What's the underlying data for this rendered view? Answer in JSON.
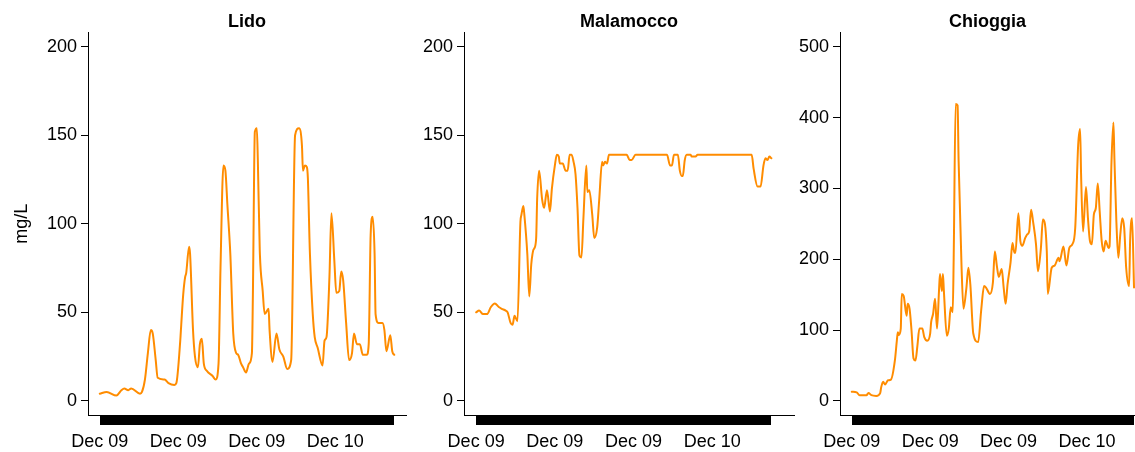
{
  "chart_data": [
    {
      "type": "line",
      "title": "Lido",
      "ylabel": "mg/L",
      "x": [
        "--12-09T00:00",
        "--12-09T00:42",
        "--12-09T01:42",
        "--12-09T02:12",
        "--12-09T02:30",
        "--12-09T02:54",
        "--12-09T03:12",
        "--12-09T04:06",
        "--12-09T04:18",
        "--12-09T04:36",
        "--12-09T04:54",
        "--12-09T05:12",
        "--12-09T05:24",
        "--12-09T05:42",
        "--12-09T05:54",
        "--12-09T06:36",
        "--12-09T07:00",
        "--12-09T07:36",
        "--12-09T07:48",
        "--12-09T08:12",
        "--12-09T08:18",
        "--12-09T08:30",
        "--12-09T08:42",
        "--12-09T08:48",
        "--12-09T09:06",
        "--12-09T09:12",
        "--12-09T09:30",
        "--12-09T09:42",
        "--12-09T10:00",
        "--12-09T10:12",
        "--12-09T10:24",
        "--12-09T10:36",
        "--12-09T10:54",
        "--12-09T11:30",
        "--12-09T11:48",
        "--12-09T12:06",
        "--12-09T12:18",
        "--12-09T12:36",
        "--12-09T12:48",
        "--12-09T13:00",
        "--12-09T13:18",
        "--12-09T13:36",
        "--12-09T13:54",
        "--12-09T14:06",
        "--12-09T14:24",
        "--12-09T14:36",
        "--12-09T14:54",
        "--12-09T15:12",
        "--12-09T15:30",
        "--12-09T15:36",
        "--12-09T15:48",
        "--12-09T16:00",
        "--12-09T16:06",
        "--12-09T16:18",
        "--12-09T16:36",
        "--12-09T16:48",
        "--12-09T17:12",
        "--12-09T17:18",
        "--12-09T17:36",
        "--12-09T18:00",
        "--12-09T18:18",
        "--12-09T18:42",
        "--12-09T19:06",
        "--12-09T19:30",
        "--12-09T19:54",
        "--12-09T20:18",
        "--12-09T20:36",
        "--12-09T20:42",
        "--12-09T20:54",
        "--12-09T21:06",
        "--12-09T21:12",
        "--12-09T21:24",
        "--12-09T21:42",
        "--12-09T21:54",
        "--12-09T22:12",
        "--12-09T22:42",
        "--12-09T22:54",
        "--12-09T23:06",
        "--12-09T23:24",
        "--12-09T23:36",
        "--12-09T23:54",
        "--12-10T00:06",
        "--12-10T00:24",
        "--12-10T00:36",
        "--12-10T00:48",
        "--12-10T01:06",
        "--12-10T01:24",
        "--12-10T01:42",
        "--12-10T01:54",
        "--12-10T02:12",
        "--12-10T02:30",
        "--12-10T02:48",
        "--12-10T03:12",
        "--12-10T03:24",
        "--12-10T03:36",
        "--12-10T03:48",
        "--12-10T04:00",
        "--12-10T04:06",
        "--12-10T04:24",
        "--12-10T04:48",
        "--12-10T05:00",
        "--12-10T05:12",
        "--12-10T05:36",
        "--12-10T05:48",
        "--12-10T06:00"
      ],
      "series": [
        {
          "color": "#ff8c00",
          "values": [
            4,
            5,
            3,
            6,
            7,
            6,
            7,
            4,
            5,
            12,
            27,
            40,
            38,
            23,
            13,
            12,
            10,
            9,
            10,
            34,
            43,
            60,
            70,
            72,
            87,
            83,
            40,
            25,
            19,
            32,
            35,
            21,
            17,
            14,
            12,
            21,
            75,
            133,
            130,
            111,
            83,
            38,
            27,
            26,
            21,
            19,
            16,
            21,
            27,
            60,
            152,
            154,
            137,
            85,
            62,
            49,
            52,
            40,
            22,
            38,
            29,
            25,
            18,
            23,
            150,
            154,
            144,
            130,
            133,
            132,
            126,
            85,
            49,
            36,
            30,
            20,
            34,
            36,
            70,
            106,
            79,
            61,
            62,
            73,
            68,
            44,
            23,
            27,
            38,
            32,
            32,
            26,
            26,
            32,
            94,
            104,
            83,
            49,
            44,
            44,
            40,
            28,
            37,
            28,
            26
          ]
        }
      ],
      "xlim": [
        "--12-08T22:48",
        "--12-10T07:12"
      ],
      "xticks": [
        {
          "value": "--12-09T00:00",
          "label": "Dec 09"
        },
        {
          "value": "--12-09T08:00",
          "label": "Dec 09"
        },
        {
          "value": "--12-09T16:00",
          "label": "Dec 09"
        },
        {
          "value": "--12-10T00:00",
          "label": "Dec 10"
        }
      ],
      "ylim": [
        -8,
        208
      ],
      "yticks": [
        0,
        50,
        100,
        150,
        200
      ]
    },
    {
      "type": "line",
      "title": "Malamocco",
      "x": [
        "--12-09T00:00",
        "--12-09T00:18",
        "--12-09T00:42",
        "--12-09T01:06",
        "--12-09T01:30",
        "--12-09T01:54",
        "--12-09T02:18",
        "--12-09T02:36",
        "--12-09T03:00",
        "--12-09T03:12",
        "--12-09T03:30",
        "--12-09T03:42",
        "--12-09T03:54",
        "--12-09T04:12",
        "--12-09T04:30",
        "--12-09T04:36",
        "--12-09T04:48",
        "--12-09T04:54",
        "--12-09T05:12",
        "--12-09T05:24",
        "--12-09T05:36",
        "--12-09T05:48",
        "--12-09T05:54",
        "--12-09T06:06",
        "--12-09T06:12",
        "--12-09T06:24",
        "--12-09T06:42",
        "--12-09T06:54",
        "--12-09T07:12",
        "--12-09T07:30",
        "--12-09T07:42",
        "--12-09T08:00",
        "--12-09T08:12",
        "--12-09T08:24",
        "--12-09T08:30",
        "--12-09T08:48",
        "--12-09T09:06",
        "--12-09T09:18",
        "--12-09T09:30",
        "--12-09T09:42",
        "--12-09T09:54",
        "--12-09T10:06",
        "--12-09T10:18",
        "--12-09T10:30",
        "--12-09T10:42",
        "--12-09T10:54",
        "--12-09T11:12",
        "--12-09T11:18",
        "--12-09T11:30",
        "--12-09T11:48",
        "--12-09T12:00",
        "--12-09T12:18",
        "--12-09T12:30",
        "--12-09T12:48",
        "--12-09T12:54",
        "--12-09T13:06",
        "--12-09T13:18",
        "--12-09T13:30",
        "--12-09T15:18",
        "--12-09T15:36",
        "--12-09T15:48",
        "--12-09T16:12",
        "--12-09T19:24",
        "--12-09T19:42",
        "--12-09T19:54",
        "--12-09T20:06",
        "--12-09T20:30",
        "--12-09T20:42",
        "--12-09T20:54",
        "--12-09T21:00",
        "--12-09T21:12",
        "--12-09T21:24",
        "--12-09T21:48",
        "--12-09T21:54",
        "--12-09T22:18",
        "--12-09T22:30",
        "--12-10T04:00",
        "--12-10T04:12",
        "--12-10T04:36",
        "--12-10T04:54",
        "--12-10T05:12",
        "--12-10T05:24",
        "--12-10T05:36",
        "--12-10T05:48",
        "--12-10T06:00"
      ],
      "series": [
        {
          "color": "#ff8c00",
          "values": [
            50,
            51,
            49,
            49,
            53,
            55,
            53,
            52,
            51,
            50,
            44,
            43,
            48,
            45,
            101,
            105,
            110,
            105,
            83,
            59,
            77,
            85,
            86,
            92,
            114,
            130,
            114,
            109,
            119,
            107,
            120,
            133,
            139,
            138,
            134,
            134,
            130,
            130,
            139,
            139,
            135,
            128,
            109,
            82,
            81,
            103,
            133,
            118,
            119,
            105,
            92,
            98,
            113,
            135,
            133,
            135,
            134,
            139,
            139,
            136,
            136,
            139,
            139,
            133,
            133,
            139,
            139,
            130,
            127,
            127,
            136,
            139,
            139,
            138,
            138,
            139,
            139,
            131,
            121,
            121,
            133,
            137,
            136,
            138,
            137
          ]
        }
      ],
      "xlim": [
        "--12-08T22:46",
        "--12-10T08:18"
      ],
      "xticks": [
        {
          "value": "--12-09T00:00",
          "label": "Dec 09"
        },
        {
          "value": "--12-09T08:00",
          "label": "Dec 09"
        },
        {
          "value": "--12-09T16:00",
          "label": "Dec 09"
        },
        {
          "value": "--12-10T00:00",
          "label": "Dec 10"
        }
      ],
      "ylim": [
        -8,
        208
      ],
      "yticks": [
        0,
        50,
        100,
        150,
        200
      ]
    },
    {
      "type": "line",
      "title": "Chioggia",
      "x": [
        "--12-09T00:00",
        "--12-09T00:30",
        "--12-09T00:48",
        "--12-09T01:30",
        "--12-09T01:42",
        "--12-09T02:00",
        "--12-09T02:30",
        "--12-09T02:54",
        "--12-09T03:00",
        "--12-09T03:12",
        "--12-09T03:24",
        "--12-09T03:42",
        "--12-09T04:00",
        "--12-09T04:24",
        "--12-09T04:36",
        "--12-09T04:42",
        "--12-09T04:48",
        "--12-09T05:00",
        "--12-09T05:06",
        "--12-09T05:18",
        "--12-09T05:36",
        "--12-09T05:42",
        "--12-09T05:54",
        "--12-09T06:06",
        "--12-09T06:18",
        "--12-09T06:30",
        "--12-09T06:42",
        "--12-09T06:54",
        "--12-09T07:12",
        "--12-09T07:24",
        "--12-09T07:42",
        "--12-09T08:00",
        "--12-09T08:06",
        "--12-09T08:18",
        "--12-09T08:30",
        "--12-09T08:42",
        "--12-09T08:54",
        "--12-09T09:00",
        "--12-09T09:12",
        "--12-09T09:18",
        "--12-09T09:24",
        "--12-09T09:42",
        "--12-09T09:54",
        "--12-09T10:06",
        "--12-09T10:18",
        "--12-09T10:24",
        "--12-09T10:36",
        "--12-09T10:48",
        "--12-09T10:54",
        "--12-09T11:12",
        "--12-09T11:24",
        "--12-09T11:42",
        "--12-09T11:54",
        "--12-09T12:06",
        "--12-09T12:24",
        "--12-09T12:54",
        "--12-09T13:12",
        "--12-09T13:30",
        "--12-09T13:42",
        "--12-09T14:06",
        "--12-09T14:24",
        "--12-09T14:36",
        "--12-09T14:48",
        "--12-09T15:00",
        "--12-09T15:18",
        "--12-09T15:30",
        "--12-09T15:42",
        "--12-09T15:54",
        "--12-09T16:12",
        "--12-09T16:24",
        "--12-09T16:36",
        "--12-09T16:42",
        "--12-09T17:00",
        "--12-09T17:12",
        "--12-09T17:24",
        "--12-09T17:42",
        "--12-09T17:54",
        "--12-09T18:06",
        "--12-09T18:18",
        "--12-09T18:30",
        "--12-09T18:48",
        "--12-09T19:00",
        "--12-09T19:18",
        "--12-09T19:30",
        "--12-09T19:54",
        "--12-09T20:00",
        "--12-09T20:24",
        "--12-09T20:42",
        "--12-09T21:06",
        "--12-09T21:12",
        "--12-09T21:36",
        "--12-09T21:54",
        "--12-09T22:12",
        "--12-09T22:30",
        "--12-09T22:48",
        "--12-09T23:06",
        "--12-09T23:18",
        "--12-09T23:24",
        "--12-09T23:36",
        "--12-09T23:54",
        "--12-10T00:06",
        "--12-10T00:18",
        "--12-10T00:30",
        "--12-10T00:42",
        "--12-10T00:54",
        "--12-10T01:06",
        "--12-10T01:18",
        "--12-10T01:30",
        "--12-10T01:42",
        "--12-10T01:54",
        "--12-10T02:12",
        "--12-10T02:18",
        "--12-10T02:30",
        "--12-10T02:42",
        "--12-10T02:48",
        "--12-10T03:00",
        "--12-10T03:12",
        "--12-10T03:24",
        "--12-10T03:36",
        "--12-10T03:48",
        "--12-10T04:00",
        "--12-10T04:18",
        "--12-10T04:24",
        "--12-10T04:36",
        "--12-10T04:48"
      ],
      "series": [
        {
          "color": "#ff8c00",
          "values": [
            13,
            12,
            8,
            8,
            11,
            8,
            7,
            11,
            19,
            27,
            23,
            29,
            30,
            57,
            85,
            97,
            93,
            102,
            151,
            148,
            120,
            137,
            130,
            99,
            60,
            57,
            78,
            102,
            102,
            90,
            85,
            95,
            111,
            123,
            144,
            102,
            155,
            179,
            155,
            179,
            155,
            92,
            102,
            132,
            125,
            202,
            419,
            417,
            340,
            190,
            130,
            160,
            188,
            164,
            95,
            83,
            127,
            162,
            160,
            151,
            167,
            211,
            191,
            175,
            186,
            160,
            137,
            165,
            195,
            223,
            209,
            209,
            265,
            226,
            219,
            230,
            235,
            239,
            270,
            253,
            221,
            183,
            216,
            256,
            211,
            151,
            188,
            191,
            202,
            197,
            218,
            191,
            216,
            221,
            244,
            361,
            384,
            319,
            239,
            302,
            258,
            226,
            221,
            263,
            272,
            307,
            267,
            226,
            211,
            226,
            216,
            218,
            337,
            393,
            342,
            253,
            202,
            235,
            258,
            244,
            188,
            162,
            225,
            258,
            160
          ]
        }
      ],
      "xlim": [
        "--12-08T22:48",
        "--12-10T04:54"
      ],
      "xticks": [
        {
          "value": "--12-09T00:00",
          "label": "Dec 09"
        },
        {
          "value": "--12-09T08:00",
          "label": "Dec 09"
        },
        {
          "value": "--12-09T16:00",
          "label": "Dec 09"
        },
        {
          "value": "--12-10T00:00",
          "label": "Dec 10"
        }
      ],
      "ylim": [
        -20,
        520
      ],
      "yticks": [
        0,
        100,
        200,
        300,
        400,
        500
      ]
    }
  ]
}
